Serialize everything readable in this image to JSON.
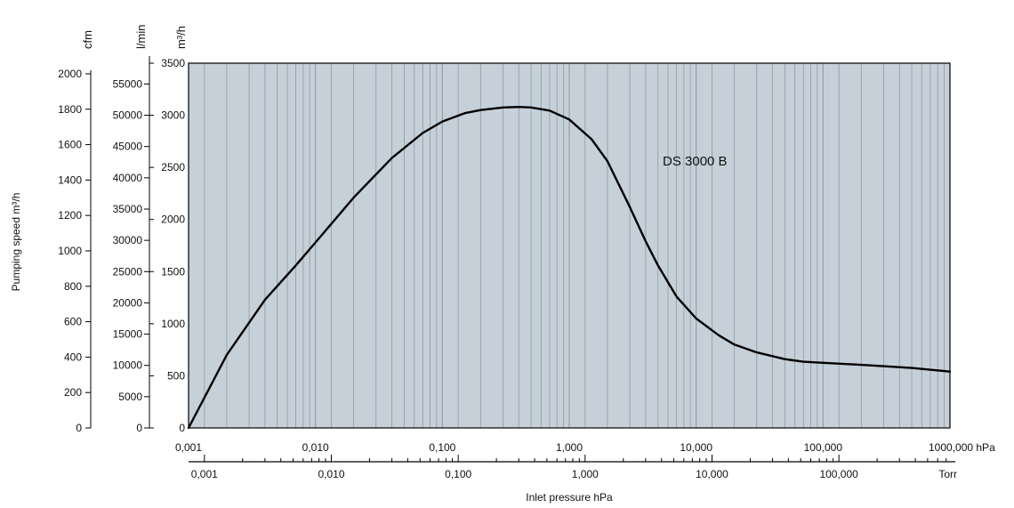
{
  "chart_data": {
    "type": "line",
    "x_scale": "log",
    "xlim": [
      0.001,
      1000
    ],
    "ylim": [
      0,
      3500
    ],
    "grid": true,
    "plot_background": "#c6d0d9",
    "grid_color": "#8f9aa4",
    "line_color": "#000000",
    "series": [
      {
        "name": "DS 3000 B",
        "x": [
          0.001,
          0.002,
          0.004,
          0.007,
          0.01,
          0.02,
          0.04,
          0.07,
          0.1,
          0.15,
          0.2,
          0.3,
          0.4,
          0.5,
          0.7,
          1,
          1.5,
          2,
          3,
          4,
          5,
          7,
          10,
          15,
          20,
          30,
          50,
          70,
          100,
          200,
          500,
          1000
        ],
        "y": [
          0,
          700,
          1230,
          1560,
          1780,
          2210,
          2590,
          2830,
          2940,
          3020,
          3050,
          3075,
          3080,
          3075,
          3045,
          2960,
          2770,
          2560,
          2120,
          1790,
          1560,
          1260,
          1050,
          890,
          800,
          725,
          660,
          635,
          625,
          605,
          575,
          540
        ]
      }
    ],
    "series_label": "DS 3000 B",
    "axes": {
      "cfm": {
        "unit": "cfm",
        "ticks": [
          "2000",
          "1800",
          "1600",
          "1400",
          "1200",
          "1000",
          "800",
          "600",
          "400",
          "200",
          "0"
        ],
        "tick_values": [
          2000,
          1800,
          1600,
          1400,
          1200,
          1000,
          800,
          600,
          400,
          200,
          0
        ]
      },
      "lmin": {
        "unit": "l/min",
        "ticks": [
          "55000",
          "50000",
          "45000",
          "40000",
          "35000",
          "30000",
          "25000",
          "20000",
          "15000",
          "10000",
          "5000",
          "0"
        ],
        "tick_values": [
          55000,
          50000,
          45000,
          40000,
          35000,
          30000,
          25000,
          20000,
          15000,
          10000,
          5000,
          0
        ]
      },
      "m3h": {
        "unit": "m³/h",
        "ticks": [
          "3500",
          "3000",
          "2500",
          "2000",
          "1500",
          "1000",
          "500",
          "0"
        ],
        "tick_values": [
          3500,
          3000,
          2500,
          2000,
          1500,
          1000,
          500,
          0
        ]
      },
      "hpa": {
        "unit": "hPa",
        "ticks": [
          "0,001",
          "0,010",
          "0,100",
          "1,000",
          "10,000",
          "100,000",
          "1000,000 hPa"
        ],
        "tick_values": [
          0.001,
          0.01,
          0.1,
          1,
          10,
          100,
          1000
        ]
      },
      "torr": {
        "unit": "Torr",
        "ticks": [
          "0,001",
          "0,010",
          "0,100",
          "1,000",
          "10,000",
          "100,000",
          "Torr"
        ],
        "tick_values": [
          0.001,
          0.01,
          0.1,
          1,
          10,
          100,
          1000
        ]
      }
    },
    "ylabel": "Pumping speed m³/h",
    "xlabel": "Inlet pressure hPa"
  }
}
